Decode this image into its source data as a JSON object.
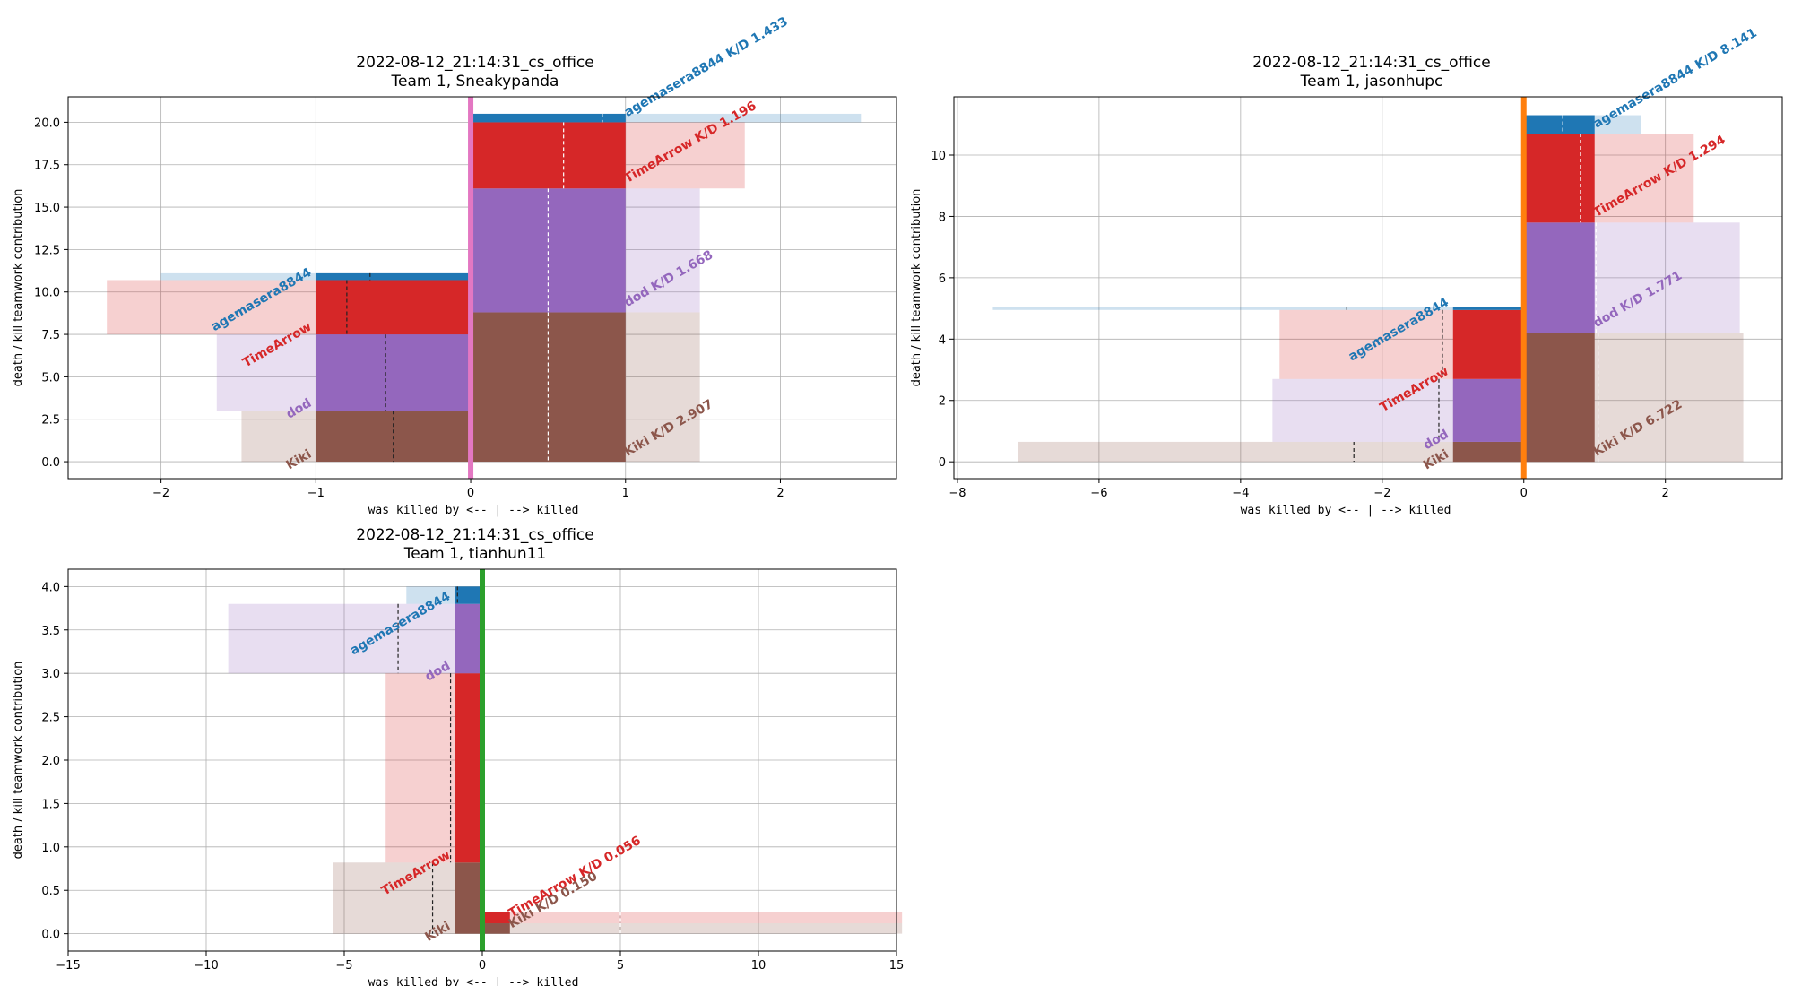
{
  "colors": {
    "agemasera8844": "#1f77b4",
    "TimeArrow": "#d62728",
    "dod": "#9467bd",
    "Kiki": "#8c564b",
    "Sneakypanda": "#e377c2",
    "jasonhupc": "#ff7f0e",
    "tianhun11": "#2ca02c"
  },
  "chart_data": [
    {
      "type": "bar",
      "title": "2022-08-12_21:14:31_cs_office",
      "subtitle": "Team 1, Sneakypanda",
      "player": "Sneakypanda",
      "xlabel": "was killed by <-- | --> killed",
      "ylabel": "death / kill teamwork contribution",
      "xlim": [
        -2.6,
        2.75
      ],
      "ylim": [
        -1.0,
        21.5
      ],
      "xticks": [
        -2,
        -1,
        0,
        1,
        2
      ],
      "xtick_labels": [
        "−2",
        "−1",
        "0",
        "1",
        "2"
      ],
      "yticks": [
        0,
        2.5,
        5,
        7.5,
        10,
        12.5,
        15,
        17.5,
        20
      ],
      "ytick_labels": [
        "0.0",
        "2.5",
        "5.0",
        "7.5",
        "10.0",
        "12.5",
        "15.0",
        "17.5",
        "20.0"
      ],
      "grid": true,
      "killed_by": [
        {
          "name": "Kiki",
          "y0": 0,
          "y1": 3.0,
          "value": -1.0,
          "ext": -1.48,
          "mark": -0.5
        },
        {
          "name": "dod",
          "y0": 3.0,
          "y1": 7.5,
          "value": -1.0,
          "ext": -1.64,
          "mark": -0.55
        },
        {
          "name": "TimeArrow",
          "y0": 7.5,
          "y1": 10.7,
          "value": -1.0,
          "ext": -2.35,
          "mark": -0.8
        },
        {
          "name": "agemasera8844",
          "y0": 10.7,
          "y1": 11.1,
          "value": -1.0,
          "ext": -2.0,
          "mark": -0.65
        }
      ],
      "killed": [
        {
          "name": "Kiki",
          "y0": 0,
          "y1": 8.8,
          "value": 1.0,
          "ext": 1.48,
          "mark": 0.5,
          "label": "Kiki K/D 2.907"
        },
        {
          "name": "dod",
          "y0": 8.8,
          "y1": 16.1,
          "value": 1.0,
          "ext": 1.48,
          "mark": 0.5,
          "label": "dod K/D 1.668"
        },
        {
          "name": "TimeArrow",
          "y0": 16.1,
          "y1": 20.0,
          "value": 1.0,
          "ext": 1.77,
          "mark": 0.6,
          "label": "TimeArrow K/D 1.196"
        },
        {
          "name": "agemasera8844",
          "y0": 20.0,
          "y1": 20.5,
          "value": 1.0,
          "ext": 2.52,
          "mark": 0.85,
          "label": "agemasera8844 K/D 1.433"
        }
      ]
    },
    {
      "type": "bar",
      "title": "2022-08-12_21:14:31_cs_office",
      "subtitle": "Team 1, jasonhupc",
      "player": "jasonhupc",
      "xlabel": "was killed by <-- | --> killed",
      "ylabel": "death / kill teamwork contribution",
      "xlim": [
        -8.05,
        3.65
      ],
      "ylim": [
        -0.55,
        11.9
      ],
      "xticks": [
        -8,
        -6,
        -4,
        -2,
        0,
        2
      ],
      "xtick_labels": [
        "−8",
        "−6",
        "−4",
        "−2",
        "0",
        "2"
      ],
      "yticks": [
        0,
        2,
        4,
        6,
        8,
        10
      ],
      "ytick_labels": [
        "0",
        "2",
        "4",
        "6",
        "8",
        "10"
      ],
      "grid": true,
      "killed_by": [
        {
          "name": "Kiki",
          "y0": 0,
          "y1": 0.65,
          "value": -1.0,
          "ext": -7.15,
          "mark": -2.4
        },
        {
          "name": "dod",
          "y0": 0.65,
          "y1": 2.7,
          "value": -1.0,
          "ext": -3.55,
          "mark": -1.2
        },
        {
          "name": "TimeArrow",
          "y0": 2.7,
          "y1": 4.95,
          "value": -1.0,
          "ext": -3.45,
          "mark": -1.15
        },
        {
          "name": "agemasera8844",
          "y0": 4.95,
          "y1": 5.05,
          "value": -1.0,
          "ext": -7.5,
          "mark": -2.5
        }
      ],
      "killed": [
        {
          "name": "Kiki",
          "y0": 0,
          "y1": 4.2,
          "value": 1.0,
          "ext": 3.1,
          "mark": 1.05,
          "label": "Kiki K/D 6.722"
        },
        {
          "name": "dod",
          "y0": 4.2,
          "y1": 7.8,
          "value": 1.0,
          "ext": 3.05,
          "mark": 1.02,
          "label": "dod K/D 1.771"
        },
        {
          "name": "TimeArrow",
          "y0": 7.8,
          "y1": 10.7,
          "value": 1.0,
          "ext": 2.4,
          "mark": 0.8,
          "label": "TimeArrow K/D 1.294"
        },
        {
          "name": "agemasera8844",
          "y0": 10.7,
          "y1": 11.3,
          "value": 1.0,
          "ext": 1.65,
          "mark": 0.55,
          "label": "agemasera8844 K/D 8.141"
        }
      ]
    },
    {
      "type": "bar",
      "title": "2022-08-12_21:14:31_cs_office",
      "subtitle": "Team 1, tianhun11",
      "player": "tianhun11",
      "xlabel": "was killed by <-- | --> killed",
      "ylabel": "death / kill teamwork contribution",
      "xlim": [
        -15,
        15
      ],
      "ylim": [
        -0.2,
        4.2
      ],
      "xticks": [
        -15,
        -10,
        -5,
        0,
        5,
        10,
        15
      ],
      "xtick_labels": [
        "−15",
        "−10",
        "−5",
        "0",
        "5",
        "10",
        "15"
      ],
      "yticks": [
        0,
        0.5,
        1.0,
        1.5,
        2.0,
        2.5,
        3.0,
        3.5,
        4.0
      ],
      "ytick_labels": [
        "0.0",
        "0.5",
        "1.0",
        "1.5",
        "2.0",
        "2.5",
        "3.0",
        "3.5",
        "4.0"
      ],
      "grid": true,
      "killed_by": [
        {
          "name": "Kiki",
          "y0": 0,
          "y1": 0.82,
          "value": -1.0,
          "ext": -5.4,
          "mark": -1.8
        },
        {
          "name": "TimeArrow",
          "y0": 0.82,
          "y1": 3.0,
          "value": -1.0,
          "ext": -3.5,
          "mark": -1.15
        },
        {
          "name": "dod",
          "y0": 3.0,
          "y1": 3.8,
          "value": -1.0,
          "ext": -9.2,
          "mark": -3.05
        },
        {
          "name": "agemasera8844",
          "y0": 3.8,
          "y1": 4.0,
          "value": -1.0,
          "ext": -2.75,
          "mark": -0.9
        }
      ],
      "killed": [
        {
          "name": "Kiki",
          "y0": 0,
          "y1": 0.12,
          "value": 1.0,
          "ext": 15.2,
          "mark": 5.0,
          "label": "Kiki K/D 0.150"
        },
        {
          "name": "TimeArrow",
          "y0": 0.12,
          "y1": 0.25,
          "value": 1.0,
          "ext": 15.2,
          "mark": 5.0,
          "label": "TimeArrow K/D 0.056"
        }
      ]
    }
  ]
}
